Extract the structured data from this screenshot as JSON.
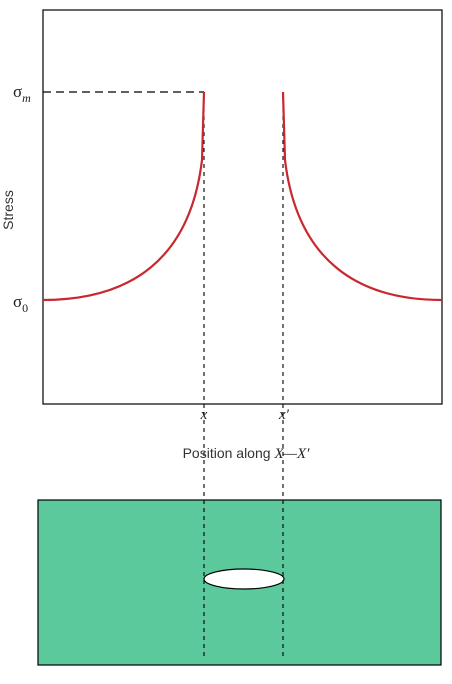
{
  "axes": {
    "y_title": "Stress",
    "y_tick_max_base": "σ",
    "y_tick_max_sub": "m",
    "y_tick_nominal_base": "σ",
    "y_tick_nominal_sub": "0",
    "x_title_prefix": "Position along ",
    "x_title_italic": "X—X′",
    "x_tick_left": "x",
    "x_tick_right": "x′"
  },
  "colors": {
    "curve": "#c8282e",
    "plate": "#5bc99b",
    "hole": "#ffffff",
    "frame": "#000000"
  }
}
